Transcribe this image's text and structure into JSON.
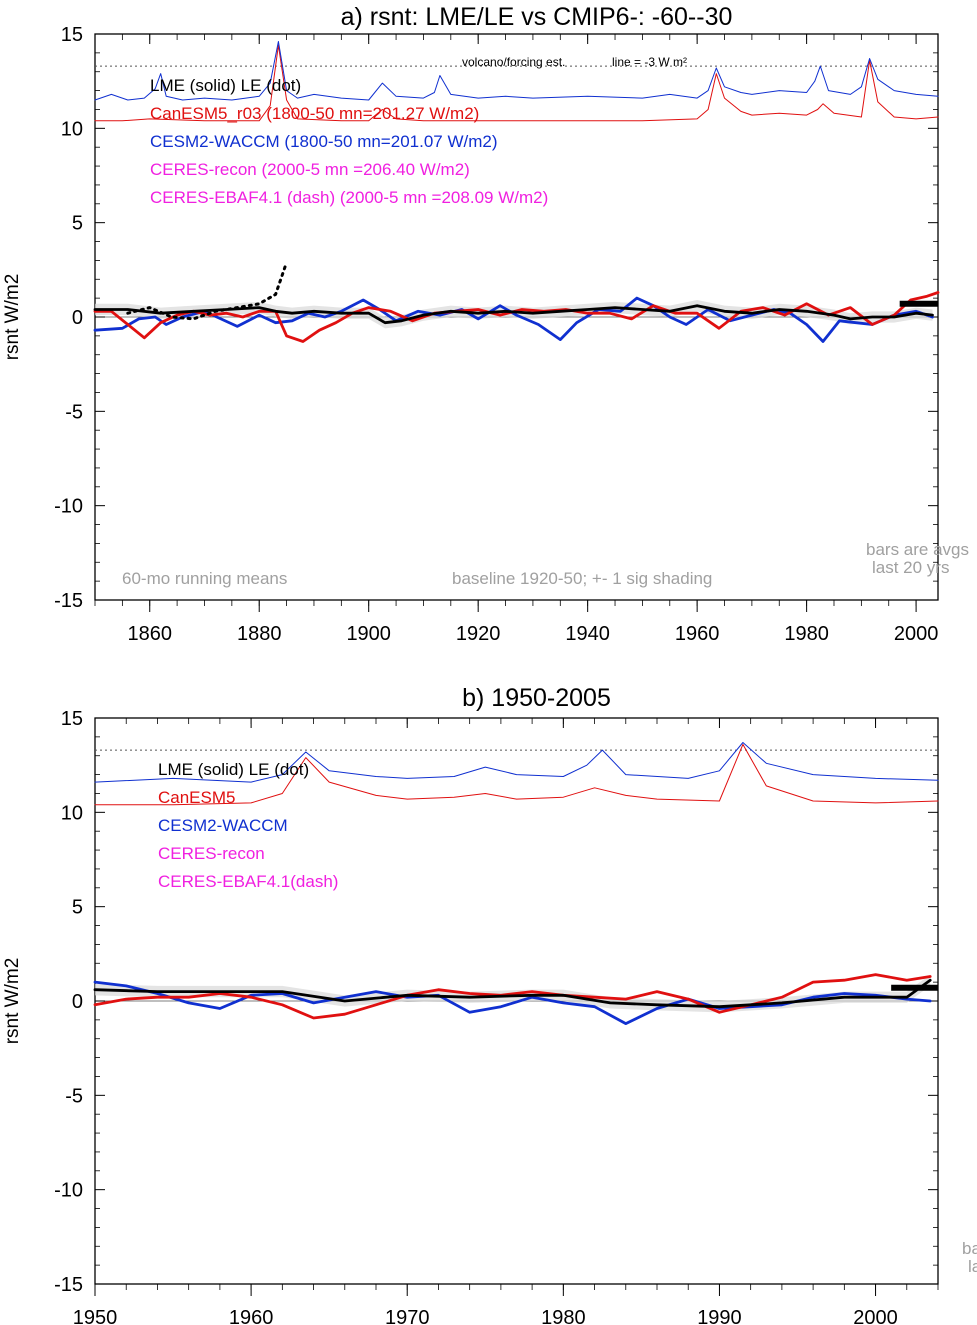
{
  "colors": {
    "lme": "#000000",
    "canesm": "#e01010",
    "cesm": "#1030d0",
    "ceres": "#f020e0",
    "note": "#a0a0a0",
    "shade": "#d8d8d8"
  },
  "chart_data": [
    {
      "type": "line",
      "title": "a) rsnt: LME/LE vs CMIP6-: -60--30",
      "ylabel": "rsnt W/m2",
      "xlim": [
        1850,
        2004
      ],
      "ylim": [
        -15,
        15
      ],
      "xticks": [
        1860,
        1880,
        1900,
        1920,
        1940,
        1960,
        1980,
        2000
      ],
      "yticks": [
        15,
        10,
        5,
        0,
        -5,
        -10,
        -15
      ],
      "reference_line": {
        "y": 13.3,
        "label": "volcano/forcing est.",
        "label2": "line = -3 W m²"
      },
      "legend": [
        {
          "text": "LME (solid)   LE (dot)",
          "color": "lme"
        },
        {
          "text": "CanESM5_r03 (1800-50 mn=201.27 W/m2)",
          "color": "canesm"
        },
        {
          "text": "CESM2-WACCM (1800-50 mn=201.07 W/m2)",
          "color": "cesm"
        },
        {
          "text": "CERES-recon (2000-5 mn =206.40 W/m2)",
          "color": "ceres"
        },
        {
          "text": "CERES-EBAF4.1 (dash) (2000-5 mn =208.09 W/m2)",
          "color": "ceres"
        }
      ],
      "annotations": [
        "60-mo running means",
        "baseline 1920-50; +- 1 sig shading",
        "bars are avgs",
        "last 20 yrs"
      ],
      "series": [
        {
          "name": "CESM2-WACCM",
          "key": "cesm",
          "x": [
            1850,
            1855,
            1858,
            1861,
            1863,
            1866,
            1870,
            1873,
            1876,
            1880,
            1883,
            1886,
            1889,
            1892,
            1895,
            1899,
            1902,
            1905,
            1909,
            1913,
            1917,
            1920,
            1924,
            1927,
            1931,
            1935,
            1938,
            1942,
            1946,
            1949,
            1952,
            1955,
            1958,
            1962,
            1966,
            1970,
            1974,
            1977,
            1980,
            1983,
            1986,
            1989,
            1992,
            1996,
            2000,
            2003
          ],
          "y": [
            -0.7,
            -0.6,
            -0.1,
            0.0,
            -0.4,
            0.0,
            0.3,
            -0.1,
            -0.5,
            0.1,
            -0.3,
            -0.2,
            0.2,
            0.0,
            0.3,
            0.9,
            0.4,
            -0.2,
            0.3,
            0.1,
            0.4,
            -0.1,
            0.6,
            0.1,
            -0.4,
            -1.2,
            -0.3,
            0.4,
            0.3,
            1.0,
            0.6,
            0.0,
            -0.4,
            0.4,
            -0.2,
            0.1,
            0.4,
            0.2,
            -0.4,
            -1.3,
            -0.2,
            -0.3,
            -0.4,
            0.1,
            0.3,
            0.0
          ]
        },
        {
          "name": "CanESM5",
          "key": "canesm",
          "x": [
            1850,
            1853,
            1856,
            1859,
            1862,
            1865,
            1868,
            1871,
            1874,
            1877,
            1880,
            1883,
            1885,
            1888,
            1891,
            1894,
            1897,
            1900,
            1904,
            1908,
            1912,
            1916,
            1920,
            1924,
            1928,
            1932,
            1936,
            1940,
            1944,
            1948,
            1952,
            1956,
            1960,
            1964,
            1968,
            1972,
            1976,
            1980,
            1984,
            1988,
            1992,
            1996,
            1999,
            2002,
            2004
          ],
          "y": [
            0.3,
            0.3,
            -0.4,
            -1.1,
            -0.3,
            0.1,
            0.3,
            0.1,
            0.2,
            0.0,
            0.3,
            0.3,
            -1.0,
            -1.3,
            -0.7,
            -0.3,
            0.2,
            0.5,
            0.3,
            -0.2,
            0.2,
            0.3,
            0.4,
            0.1,
            0.4,
            0.3,
            0.4,
            0.2,
            0.2,
            -0.1,
            0.6,
            0.2,
            0.2,
            -0.6,
            0.3,
            0.5,
            0.1,
            0.7,
            0.1,
            0.5,
            -0.4,
            0.1,
            0.9,
            1.1,
            1.3
          ]
        },
        {
          "name": "LME",
          "key": "lme",
          "x": [
            1850,
            1856,
            1862,
            1868,
            1874,
            1880,
            1883,
            1886,
            1890,
            1895,
            1900,
            1903,
            1906,
            1910,
            1915,
            1920,
            1925,
            1930,
            1935,
            1940,
            1945,
            1950,
            1955,
            1960,
            1965,
            1970,
            1975,
            1980,
            1985,
            1988,
            1992,
            1996,
            2000,
            2003
          ],
          "y": [
            0.4,
            0.4,
            0.2,
            0.3,
            0.4,
            0.5,
            0.3,
            0.2,
            0.3,
            0.2,
            0.2,
            -0.3,
            -0.2,
            0.1,
            0.3,
            0.2,
            0.3,
            0.2,
            0.3,
            0.4,
            0.5,
            0.4,
            0.3,
            0.6,
            0.3,
            0.2,
            0.4,
            0.3,
            0.1,
            -0.1,
            0.0,
            0.0,
            0.2,
            0.1
          ]
        },
        {
          "name": "LE",
          "key": "lme",
          "dot": true,
          "x": [
            1856,
            1860,
            1864,
            1868,
            1872,
            1876,
            1880,
            1883,
            1885
          ],
          "y": [
            0.2,
            0.5,
            0.0,
            -0.1,
            0.3,
            0.5,
            0.7,
            1.2,
            2.9
          ]
        },
        {
          "name": "CanESM5 forcing",
          "key": "canesm",
          "thin": true,
          "x": [
            1850,
            1855,
            1860,
            1870,
            1880,
            1882,
            1883.5,
            1885,
            1887,
            1895,
            1900,
            1902.5,
            1905,
            1910,
            1920,
            1930,
            1950,
            1960,
            1962,
            1963.5,
            1965,
            1968,
            1970,
            1975,
            1980,
            1982,
            1983,
            1985,
            1990,
            1991.5,
            1993,
            1996,
            2000,
            2004
          ],
          "y": [
            10.4,
            10.4,
            10.5,
            10.4,
            10.4,
            11.2,
            14.4,
            11.5,
            10.5,
            10.4,
            10.4,
            11.0,
            10.5,
            10.4,
            10.4,
            10.4,
            10.4,
            10.5,
            11.0,
            12.9,
            11.6,
            10.9,
            10.7,
            10.8,
            10.7,
            11.0,
            11.3,
            10.8,
            10.6,
            13.6,
            11.4,
            10.6,
            10.5,
            10.6
          ]
        },
        {
          "name": "CESM2 forcing",
          "key": "cesm",
          "thin": true,
          "x": [
            1850,
            1853,
            1856,
            1859,
            1861,
            1862,
            1863,
            1866,
            1870,
            1875,
            1880,
            1882,
            1883.5,
            1885,
            1887,
            1890,
            1895,
            1900,
            1902.5,
            1905,
            1910,
            1912,
            1913,
            1915,
            1920,
            1925,
            1930,
            1940,
            1950,
            1955,
            1960,
            1962,
            1963.5,
            1965,
            1968,
            1970,
            1975,
            1980,
            1981.5,
            1982.5,
            1984,
            1988,
            1990,
            1991.5,
            1993,
            1996,
            2000,
            2004
          ],
          "y": [
            11.5,
            11.8,
            11.5,
            11.6,
            12.1,
            12.9,
            11.7,
            11.5,
            11.6,
            11.5,
            11.7,
            12.4,
            14.6,
            12.0,
            11.6,
            11.8,
            11.6,
            11.5,
            12.4,
            11.7,
            11.6,
            11.9,
            12.8,
            11.8,
            11.6,
            11.7,
            11.6,
            11.7,
            11.6,
            11.8,
            11.6,
            12.0,
            13.2,
            12.2,
            11.9,
            11.8,
            12.0,
            11.9,
            12.5,
            13.3,
            12.0,
            11.8,
            12.2,
            13.7,
            12.6,
            12.0,
            11.8,
            11.7
          ]
        }
      ],
      "bars": [
        {
          "x0": 1997,
          "x1": 2004,
          "y": 0.7,
          "key": "lme"
        }
      ]
    },
    {
      "type": "line",
      "title": "b) 1950-2005",
      "ylabel": "rsnt W/m2",
      "xlim": [
        1950,
        2004
      ],
      "ylim": [
        -15,
        15
      ],
      "xticks": [
        1950,
        1960,
        1970,
        1980,
        1990,
        2000
      ],
      "yticks": [
        15,
        10,
        5,
        0,
        -5,
        -10,
        -15
      ],
      "reference_line": {
        "y": 13.3
      },
      "legend": [
        {
          "text": "LME (solid)      LE (dot)",
          "color": "lme"
        },
        {
          "text": "CanESM5",
          "color": "canesm"
        },
        {
          "text": "CESM2-WACCM",
          "color": "cesm"
        },
        {
          "text": "CERES-recon",
          "color": "ceres"
        },
        {
          "text": "CERES-EBAF4.1(dash)",
          "color": "ceres"
        }
      ],
      "annotations": [
        "ba",
        "la"
      ],
      "series": [
        {
          "name": "CESM2-WACCM",
          "key": "cesm",
          "x": [
            1950,
            1952,
            1954,
            1956,
            1958,
            1960,
            1962,
            1964,
            1966,
            1968,
            1970,
            1972,
            1974,
            1976,
            1978,
            1980,
            1982,
            1984,
            1986,
            1988,
            1990,
            1992,
            1994,
            1996,
            1998,
            2000,
            2002,
            2003.5
          ],
          "y": [
            1.0,
            0.8,
            0.4,
            -0.1,
            -0.4,
            0.3,
            0.4,
            -0.1,
            0.2,
            0.5,
            0.2,
            0.3,
            -0.6,
            -0.3,
            0.2,
            -0.1,
            -0.3,
            -1.2,
            -0.4,
            0.1,
            -0.4,
            -0.3,
            -0.2,
            0.2,
            0.4,
            0.3,
            0.1,
            0.0
          ]
        },
        {
          "name": "CanESM5",
          "key": "canesm",
          "x": [
            1950,
            1952,
            1954,
            1956,
            1958,
            1960,
            1962,
            1964,
            1966,
            1968,
            1970,
            1972,
            1974,
            1976,
            1978,
            1980,
            1982,
            1984,
            1986,
            1988,
            1990,
            1992,
            1994,
            1996,
            1998,
            2000,
            2002,
            2003.5
          ],
          "y": [
            -0.2,
            0.1,
            0.2,
            0.2,
            0.4,
            0.2,
            -0.2,
            -0.9,
            -0.7,
            -0.2,
            0.3,
            0.6,
            0.4,
            0.3,
            0.5,
            0.3,
            0.2,
            0.1,
            0.5,
            0.1,
            -0.6,
            -0.2,
            0.2,
            1.0,
            1.1,
            1.4,
            1.1,
            1.3
          ]
        },
        {
          "name": "LME",
          "key": "lme",
          "x": [
            1950,
            1954,
            1958,
            1962,
            1966,
            1970,
            1974,
            1978,
            1980,
            1983,
            1986,
            1990,
            1994,
            1998,
            2002,
            2003.5
          ],
          "y": [
            0.6,
            0.5,
            0.5,
            0.5,
            0.0,
            0.3,
            0.2,
            0.3,
            0.3,
            -0.1,
            -0.2,
            -0.3,
            -0.1,
            0.2,
            0.2,
            1.1
          ]
        },
        {
          "name": "CanESM5 forcing",
          "key": "canesm",
          "thin": true,
          "x": [
            1950,
            1955,
            1960,
            1962,
            1963.5,
            1965,
            1968,
            1970,
            1973,
            1975,
            1977,
            1980,
            1982,
            1984,
            1986,
            1990,
            1991.5,
            1993,
            1996,
            2000,
            2004
          ],
          "y": [
            10.4,
            10.4,
            10.5,
            11.0,
            12.9,
            11.6,
            10.9,
            10.7,
            10.8,
            11.0,
            10.7,
            10.8,
            11.3,
            10.9,
            10.7,
            10.6,
            13.6,
            11.4,
            10.6,
            10.5,
            10.6
          ]
        },
        {
          "name": "CESM2 forcing",
          "key": "cesm",
          "thin": true,
          "x": [
            1950,
            1955,
            1960,
            1962,
            1963.5,
            1965,
            1968,
            1970,
            1973,
            1975,
            1977,
            1980,
            1981.5,
            1982.5,
            1984,
            1988,
            1990,
            1991.5,
            1993,
            1996,
            2000,
            2004
          ],
          "y": [
            11.6,
            11.8,
            11.6,
            12.0,
            13.2,
            12.2,
            11.9,
            11.8,
            11.9,
            12.4,
            12.0,
            11.9,
            12.5,
            13.3,
            12.0,
            11.8,
            12.2,
            13.7,
            12.6,
            12.0,
            11.8,
            11.7
          ]
        }
      ],
      "bars": [
        {
          "x0": 2001,
          "x1": 2004,
          "y": 0.7,
          "key": "lme"
        }
      ]
    }
  ]
}
